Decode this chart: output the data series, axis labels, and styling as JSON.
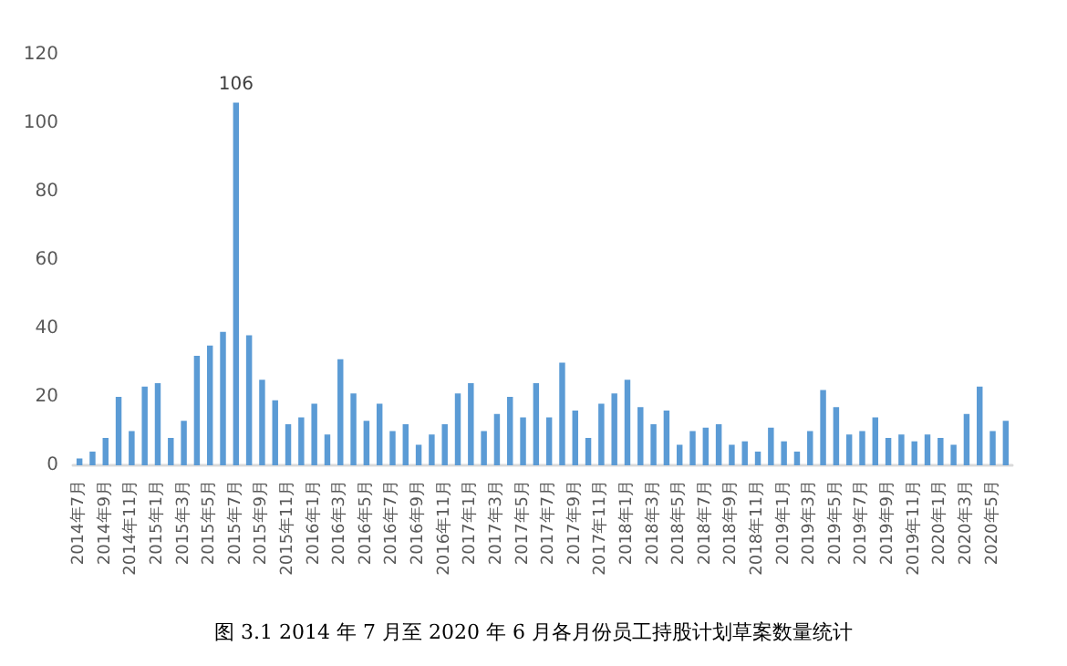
{
  "chart_data": {
    "type": "bar",
    "title": "图 3.1 2014 年 7 月至 2020 年 6 月各月份员工持股计划草案数量统计",
    "categories": [
      "2014年7月",
      null,
      "2014年9月",
      null,
      "2014年11月",
      null,
      "2015年1月",
      null,
      "2015年3月",
      null,
      "2015年5月",
      null,
      "2015年7月",
      null,
      "2015年9月",
      null,
      "2015年11月",
      null,
      "2016年1月",
      null,
      "2016年3月",
      null,
      "2016年5月",
      null,
      "2016年7月",
      null,
      "2016年9月",
      null,
      "2016年11月",
      null,
      "2017年1月",
      null,
      "2017年3月",
      null,
      "2017年5月",
      null,
      "2017年7月",
      null,
      "2017年9月",
      null,
      "2017年11月",
      null,
      "2018年1月",
      null,
      "2018年3月",
      null,
      "2018年5月",
      null,
      "2018年7月",
      null,
      "2018年9月",
      null,
      "2018年11月",
      null,
      "2019年1月",
      null,
      "2019年3月",
      null,
      "2019年5月",
      null,
      "2019年7月",
      null,
      "2019年9月",
      null,
      "2019年11月",
      null,
      "2020年1月",
      null,
      "2020年3月",
      null,
      "2020年5月",
      null
    ],
    "values": [
      2,
      4,
      8,
      20,
      10,
      23,
      24,
      8,
      13,
      32,
      35,
      39,
      106,
      38,
      25,
      19,
      12,
      14,
      18,
      9,
      31,
      21,
      13,
      18,
      10,
      12,
      6,
      9,
      12,
      21,
      24,
      10,
      15,
      20,
      14,
      24,
      14,
      30,
      16,
      8,
      18,
      21,
      25,
      17,
      12,
      16,
      6,
      10,
      11,
      12,
      6,
      7,
      4,
      11,
      7,
      4,
      10,
      22,
      17,
      9,
      10,
      14,
      8,
      9,
      7,
      9,
      8,
      6,
      15,
      23,
      10,
      13
    ],
    "value_labels": [
      null,
      null,
      null,
      null,
      null,
      null,
      null,
      null,
      null,
      null,
      null,
      null,
      "106",
      null,
      null,
      null,
      null,
      null,
      null,
      null,
      null,
      null,
      null,
      null,
      null,
      null,
      null,
      null,
      null,
      null,
      null,
      null,
      null,
      null,
      null,
      null,
      null,
      null,
      null,
      null,
      null,
      null,
      null,
      null,
      null,
      null,
      null,
      null,
      null,
      null,
      null,
      null,
      null,
      null,
      null,
      null,
      null,
      null,
      null,
      null,
      null,
      null,
      null,
      null,
      null,
      null,
      null,
      null,
      null,
      null,
      null,
      null
    ],
    "color": "#5b9bd5",
    "ylim": [
      0,
      120
    ],
    "yticks": [
      0,
      20,
      40,
      60,
      80,
      100,
      120
    ],
    "grid": false
  }
}
